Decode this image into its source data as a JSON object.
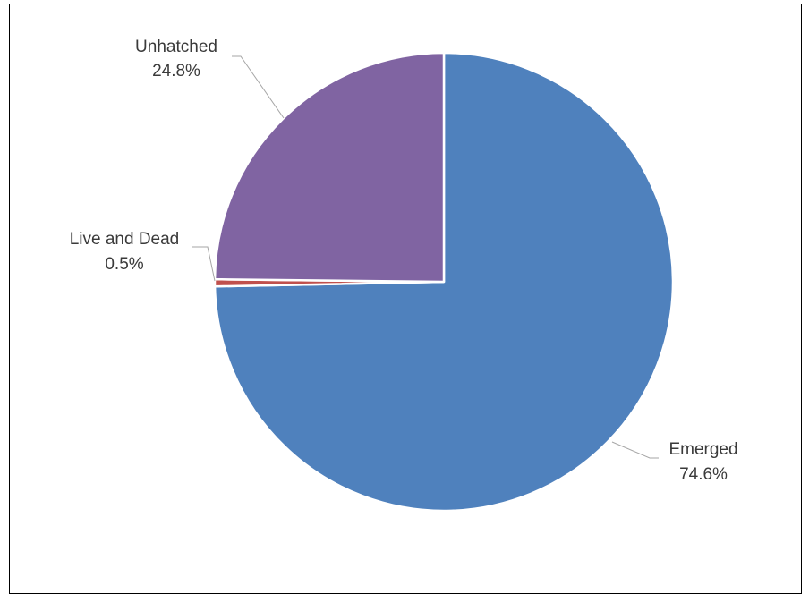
{
  "chart_data": {
    "type": "pie",
    "title": "",
    "slices": [
      {
        "label": "Emerged",
        "pct_label": "74.6%",
        "value": 74.6,
        "color": "#4F81BD"
      },
      {
        "label": "Live and Dead",
        "pct_label": "0.5%",
        "value": 0.5,
        "color": "#C0504D"
      },
      {
        "label": "Unhatched",
        "pct_label": "24.8%",
        "value": 24.8,
        "color": "#8064A2"
      }
    ],
    "start_angle_deg": 0,
    "direction": "clockwise",
    "legend": "none",
    "data_labels": "outside with leader lines"
  }
}
